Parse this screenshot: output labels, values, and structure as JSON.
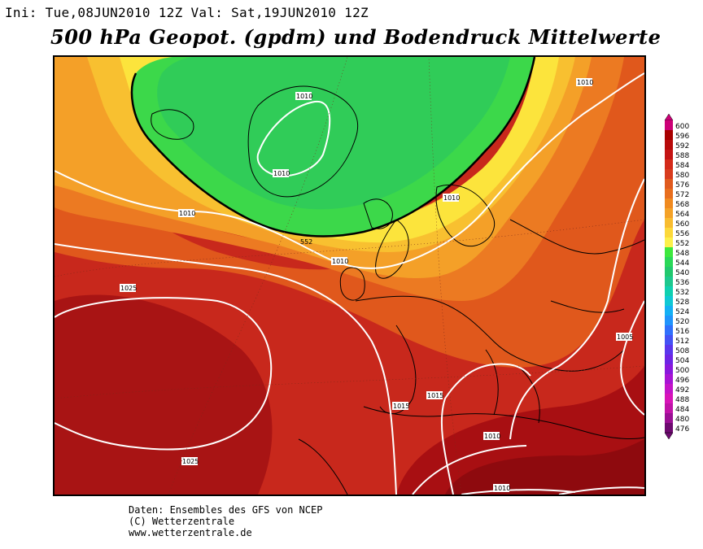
{
  "header": {
    "init_run": "Ini: Tue,08JUN2010 12Z Val: Sat,19JUN2010 12Z",
    "title": "500 hPa Geopot. (gpdm) und Bodendruck Mittelwerte"
  },
  "map": {
    "contour_label_552": "552",
    "isobar_labels": [
      "1010",
      "1010",
      "1010",
      "1010",
      "1010",
      "1025",
      "1025",
      "1015",
      "1015",
      "1005",
      "1010",
      "1010",
      "1010"
    ]
  },
  "legend": {
    "levels": [
      "600",
      "596",
      "592",
      "588",
      "584",
      "580",
      "576",
      "572",
      "568",
      "564",
      "560",
      "556",
      "552",
      "548",
      "544",
      "540",
      "536",
      "532",
      "528",
      "524",
      "520",
      "516",
      "512",
      "508",
      "504",
      "500",
      "496",
      "492",
      "488",
      "484",
      "480",
      "476"
    ],
    "colors": [
      "#cc0077",
      "#a80000",
      "#b80a0a",
      "#c41414",
      "#d42a1a",
      "#d83c1e",
      "#e05a1e",
      "#e86e1e",
      "#f08a20",
      "#f4a228",
      "#f8bc30",
      "#fcd83a",
      "#fcf04a",
      "#3ee83e",
      "#2ad858",
      "#22c86e",
      "#1ec88e",
      "#10d0b0",
      "#10c8d4",
      "#14b0f4",
      "#2094fc",
      "#3070fc",
      "#4452f4",
      "#5a36ec",
      "#6e24e4",
      "#8a18dc",
      "#a814d4",
      "#c414c8",
      "#d814b8",
      "#c012a8",
      "#9a0f94",
      "#6e0a70"
    ]
  },
  "footer": {
    "line1": "Daten: Ensembles des GFS von NCEP",
    "line2": "(C) Wetterzentrale",
    "line3": "www.wetterzentrale.de"
  }
}
